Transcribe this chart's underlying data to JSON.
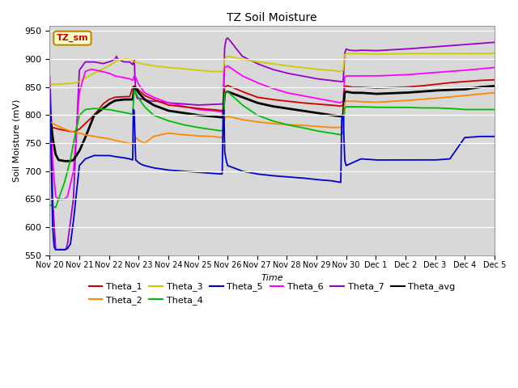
{
  "title": "TZ Soil Moisture",
  "ylabel": "Soil Moisture (mV)",
  "xlabel": "Time",
  "ylim": [
    550,
    960
  ],
  "yticks": [
    550,
    600,
    650,
    700,
    750,
    800,
    850,
    900,
    950
  ],
  "bg_color": "#d8d8d8",
  "series_colors": {
    "Theta_1": "#cc0000",
    "Theta_2": "#ff8800",
    "Theta_3": "#cccc00",
    "Theta_4": "#00bb00",
    "Theta_5": "#0000cc",
    "Theta_6": "#ff00ff",
    "Theta_7": "#9900cc",
    "Theta_avg": "#000000"
  },
  "tick_labels": [
    "Nov 20",
    "Nov 21",
    "Nov 22",
    "Nov 23",
    "Nov 24",
    "Nov 25",
    "Nov 26",
    "Nov 27",
    "Nov 28",
    "Nov 29",
    "Nov 30",
    "Dec 1",
    "Dec 2",
    "Dec 3",
    "Dec 4",
    "Dec 5"
  ],
  "legend_box": {
    "text": "TZ_sm",
    "fc": "#ffffcc",
    "ec": "#bb8800",
    "tc": "#cc0000"
  }
}
